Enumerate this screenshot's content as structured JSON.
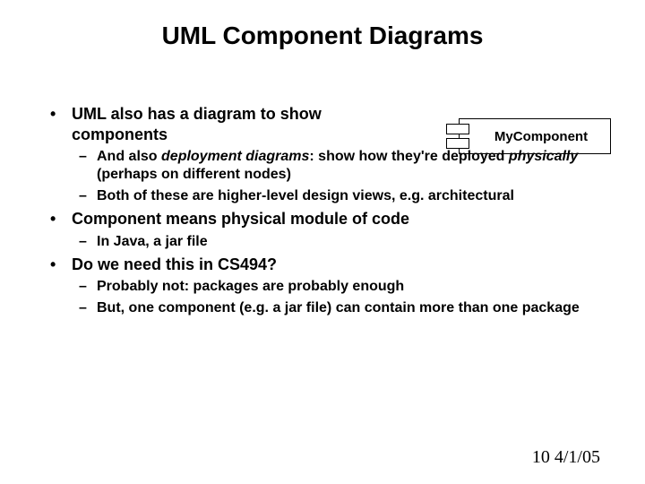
{
  "title": "UML Component Diagrams",
  "bullets": {
    "b1": "UML also has a diagram to show components",
    "b1s1_a": "And also ",
    "b1s1_b": "deployment diagrams",
    "b1s1_c": ": show how they're deployed ",
    "b1s1_d": "physically",
    "b1s1_e": " (perhaps on different nodes)",
    "b1s2": "Both of these are higher-level design views, e.g. architectural",
    "b2": "Component means physical module of code",
    "b2s1": "In Java, a jar file",
    "b3": "Do we need this in CS494?",
    "b3s1": "Probably not:  packages are probably enough",
    "b3s2": "But, one component (e.g. a jar file) can contain more than one package"
  },
  "component_label": "MyComponent",
  "footer": {
    "page": "10",
    "date": "4/1/05"
  },
  "colors": {
    "background": "#ffffff",
    "text": "#000000",
    "border": "#000000"
  },
  "fonts": {
    "title_size": 28,
    "bullet_size": 18,
    "sub_size": 16,
    "footer_size": 20
  }
}
